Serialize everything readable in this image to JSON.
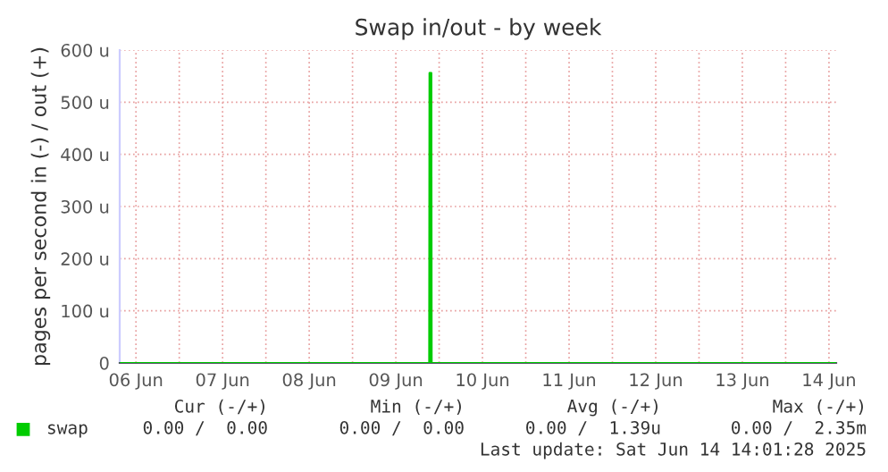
{
  "chart_data": {
    "type": "area",
    "title": "Swap in/out - by week",
    "ylabel": "pages per second in (-) / out (+)",
    "x": [
      "2025-06-06T07:30",
      "2025-06-09T21:15",
      "2025-06-09T21:20",
      "2025-06-09T21:50",
      "2025-06-09T21:55",
      "2025-06-14T14:00"
    ],
    "series": [
      {
        "name": "swap",
        "color": "#00cc00",
        "values": [
          0,
          0,
          556,
          556,
          0,
          0
        ]
      }
    ],
    "xlim": [
      "2025-06-06T07:30",
      "2025-06-14T14:00"
    ],
    "xticks": [
      {
        "value": "2025-06-06T12:00",
        "label": "06 Jun"
      },
      {
        "value": "2025-06-07T00:00",
        "label": null
      },
      {
        "value": "2025-06-07T12:00",
        "label": "07 Jun"
      },
      {
        "value": "2025-06-08T00:00",
        "label": null
      },
      {
        "value": "2025-06-08T12:00",
        "label": "08 Jun"
      },
      {
        "value": "2025-06-09T00:00",
        "label": null
      },
      {
        "value": "2025-06-09T12:00",
        "label": "09 Jun"
      },
      {
        "value": "2025-06-10T00:00",
        "label": null
      },
      {
        "value": "2025-06-10T12:00",
        "label": "10 Jun"
      },
      {
        "value": "2025-06-11T00:00",
        "label": null
      },
      {
        "value": "2025-06-11T12:00",
        "label": "11 Jun"
      },
      {
        "value": "2025-06-12T00:00",
        "label": null
      },
      {
        "value": "2025-06-12T12:00",
        "label": "12 Jun"
      },
      {
        "value": "2025-06-13T00:00",
        "label": null
      },
      {
        "value": "2025-06-13T12:00",
        "label": "13 Jun"
      },
      {
        "value": "2025-06-14T00:00",
        "label": null
      },
      {
        "value": "2025-06-14T12:00",
        "label": "14 Jun"
      }
    ],
    "ylim": [
      0,
      600
    ],
    "yticks": [
      0,
      {
        "value": 100,
        "label": "100 u"
      },
      {
        "value": 200,
        "label": "200 u"
      },
      {
        "value": 300,
        "label": "300 u"
      },
      {
        "value": 400,
        "label": "400 u"
      },
      {
        "value": 500,
        "label": "500 u"
      },
      {
        "value": 600,
        "label": "600 u"
      }
    ],
    "grid": true,
    "legend": "bottom",
    "annotations": [
      "Cur (-/+)",
      "Min (-/+)",
      "Avg (-/+)",
      "Max (-/+)",
      "0.00 /  0.00",
      "0.00 /  0.00",
      "0.00 /  1.39u",
      "0.00 /  2.35m",
      "Last update: Sat Jun 14 14:01:28 2025"
    ]
  }
}
